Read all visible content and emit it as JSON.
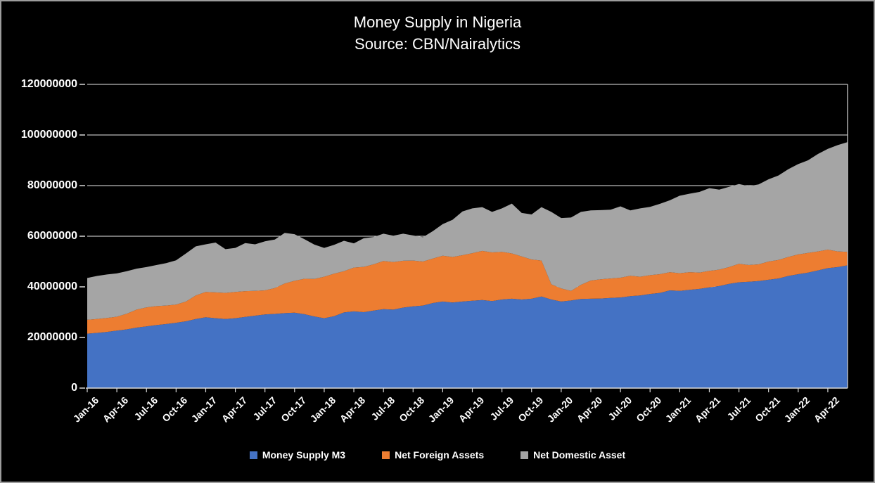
{
  "chart_data": {
    "type": "area",
    "stacked": true,
    "title": "Money Supply in Nigeria",
    "subtitle": "Source: CBN/Nairalytics",
    "grid": true,
    "legend_position": "bottom",
    "background": "#000000",
    "text_color": "#ffffff",
    "gridline_color": "#e9e9e9",
    "axis_color": "#d9d9d9",
    "ylim": [
      0,
      120000000
    ],
    "y_ticks": [
      0,
      20000000,
      40000000,
      60000000,
      80000000,
      100000000,
      120000000
    ],
    "y_tick_labels": [
      "0",
      "20000000",
      "40000000",
      "60000000",
      "80000000",
      "100000000",
      "120000000"
    ],
    "x_tick_labels": [
      "Jan-16",
      "Apr-16",
      "Jul-16",
      "Oct-16",
      "Jan-17",
      "Apr-17",
      "Jul-17",
      "Oct-17",
      "Jan-18",
      "Apr-18",
      "Jul-18",
      "Oct-18",
      "Jan-19",
      "Apr-19",
      "Jul-19",
      "Oct-19",
      "Jan-20",
      "Apr-20",
      "Jul-20",
      "Oct-20",
      "Jan-21",
      "Apr-21",
      "Jul-21",
      "Oct-21",
      "Jan-22",
      "Apr-22"
    ],
    "x": [
      "Jan-16",
      "Feb-16",
      "Mar-16",
      "Apr-16",
      "May-16",
      "Jun-16",
      "Jul-16",
      "Aug-16",
      "Sep-16",
      "Oct-16",
      "Nov-16",
      "Dec-16",
      "Jan-17",
      "Feb-17",
      "Mar-17",
      "Apr-17",
      "May-17",
      "Jun-17",
      "Jul-17",
      "Aug-17",
      "Sep-17",
      "Oct-17",
      "Nov-17",
      "Dec-17",
      "Jan-18",
      "Feb-18",
      "Mar-18",
      "Apr-18",
      "May-18",
      "Jun-18",
      "Jul-18",
      "Aug-18",
      "Sep-18",
      "Oct-18",
      "Nov-18",
      "Dec-18",
      "Jan-19",
      "Feb-19",
      "Mar-19",
      "Apr-19",
      "May-19",
      "Jun-19",
      "Jul-19",
      "Aug-19",
      "Sep-19",
      "Oct-19",
      "Nov-19",
      "Dec-19",
      "Jan-20",
      "Feb-20",
      "Mar-20",
      "Apr-20",
      "May-20",
      "Jun-20",
      "Jul-20",
      "Aug-20",
      "Sep-20",
      "Oct-20",
      "Nov-20",
      "Dec-20",
      "Jan-21",
      "Feb-21",
      "Mar-21",
      "Apr-21",
      "May-21",
      "Jun-21",
      "Jul-21",
      "Aug-21",
      "Sep-21",
      "Oct-21",
      "Nov-21",
      "Dec-21",
      "Jan-22",
      "Feb-22",
      "Mar-22",
      "Apr-22",
      "May-22",
      "Jun-22"
    ],
    "series": [
      {
        "name": "Money Supply M3",
        "color": "#4472C4",
        "values": [
          21500000,
          21800000,
          22200000,
          22700000,
          23200000,
          23900000,
          24400000,
          24900000,
          25300000,
          25800000,
          26400000,
          27300000,
          28000000,
          27600000,
          27300000,
          27600000,
          28100000,
          28600000,
          29100000,
          29300000,
          29600000,
          29800000,
          29200000,
          28300000,
          27600000,
          28400000,
          29900000,
          30300000,
          30000000,
          30600000,
          31200000,
          31000000,
          31800000,
          32300000,
          32600000,
          33600000,
          34200000,
          33800000,
          34200000,
          34500000,
          34800000,
          34400000,
          35000000,
          35300000,
          35000000,
          35300000,
          36200000,
          35000000,
          34200000,
          34600000,
          35200000,
          35300000,
          35400000,
          35600000,
          35800000,
          36300000,
          36600000,
          37200000,
          37600000,
          38600000,
          38400000,
          38800000,
          39200000,
          39800000,
          40300000,
          41200000,
          41800000,
          42000000,
          42300000,
          42800000,
          43300000,
          44300000,
          45000000,
          45600000,
          46500000,
          47400000,
          47800000,
          48500000
        ]
      },
      {
        "name": "Net Foreign Assets",
        "color": "#ED7D31",
        "values": [
          5500000,
          5500000,
          5500000,
          5500000,
          6200000,
          7100000,
          7500000,
          7500000,
          7300000,
          7200000,
          7800000,
          9300000,
          10000000,
          10200000,
          10300000,
          10400000,
          10200000,
          9800000,
          9500000,
          10200000,
          11700000,
          12600000,
          14000000,
          14800000,
          16400000,
          16800000,
          16300000,
          17300000,
          17900000,
          18300000,
          19000000,
          18800000,
          18500000,
          18100000,
          17400000,
          17600000,
          18100000,
          18000000,
          18300000,
          18800000,
          19400000,
          19200000,
          18800000,
          17900000,
          17000000,
          15500000,
          14200000,
          6000000,
          5200000,
          3800000,
          5600000,
          7200000,
          7600000,
          7700000,
          7800000,
          8100000,
          7400000,
          7400000,
          7400000,
          7200000,
          7000000,
          7000000,
          6400000,
          6500000,
          6500000,
          6600000,
          7300000,
          6600000,
          6600000,
          7200000,
          7300000,
          7500000,
          7800000,
          7800000,
          7500000,
          7300000,
          6200000,
          5300000
        ]
      },
      {
        "name": "Net Domestic Asset",
        "color": "#A5A5A5",
        "values": [
          16500000,
          17000000,
          17200000,
          17100000,
          16800000,
          16200000,
          15900000,
          16200000,
          16800000,
          17500000,
          19000000,
          19400000,
          18800000,
          19700000,
          17300000,
          17400000,
          19000000,
          18400000,
          19400000,
          19200000,
          20000000,
          18400000,
          15600000,
          13600000,
          11400000,
          11400000,
          12000000,
          9600000,
          11300000,
          10800000,
          10800000,
          10400000,
          10700000,
          9900000,
          9600000,
          10800000,
          12500000,
          14700000,
          17300000,
          17700000,
          17300000,
          16000000,
          17200000,
          19700000,
          17200000,
          17800000,
          21100000,
          28600000,
          27800000,
          29000000,
          28800000,
          27700000,
          27300000,
          27200000,
          28200000,
          25800000,
          27000000,
          27000000,
          27800000,
          28400000,
          30600000,
          31000000,
          31900000,
          32700000,
          31600000,
          31700000,
          31500000,
          31200000,
          31600000,
          32500000,
          33400000,
          34700000,
          35700000,
          36600000,
          38500000,
          39800000,
          42000000,
          43400000
        ]
      }
    ]
  }
}
